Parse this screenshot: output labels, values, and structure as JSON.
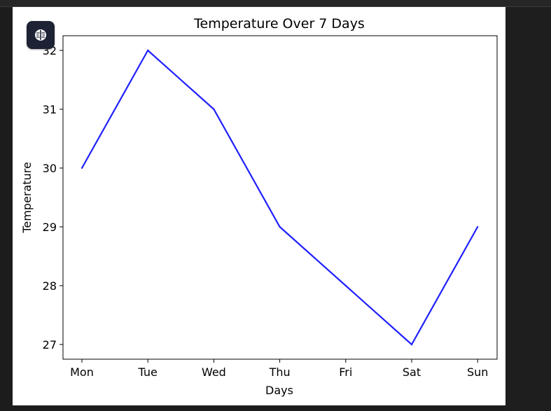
{
  "toolbar": {
    "icon": "brain-icon"
  },
  "colors": {
    "line": "#1f1fff",
    "axes": "#000000",
    "figure_bg": "#ffffff",
    "page_bg": "#1f1f1f",
    "button_bg": "#1d2234"
  },
  "chart_data": {
    "type": "line",
    "title": "Temperature Over 7 Days",
    "xlabel": "Days",
    "ylabel": "Temperature",
    "categories": [
      "Mon",
      "Tue",
      "Wed",
      "Thu",
      "Fri",
      "Sat",
      "Sun"
    ],
    "values": [
      30,
      32,
      31,
      29,
      28,
      27,
      29
    ],
    "ylim": [
      26.75,
      32.25
    ],
    "yticks": [
      27,
      28,
      29,
      30,
      31,
      32
    ],
    "grid": false,
    "legend": false
  }
}
